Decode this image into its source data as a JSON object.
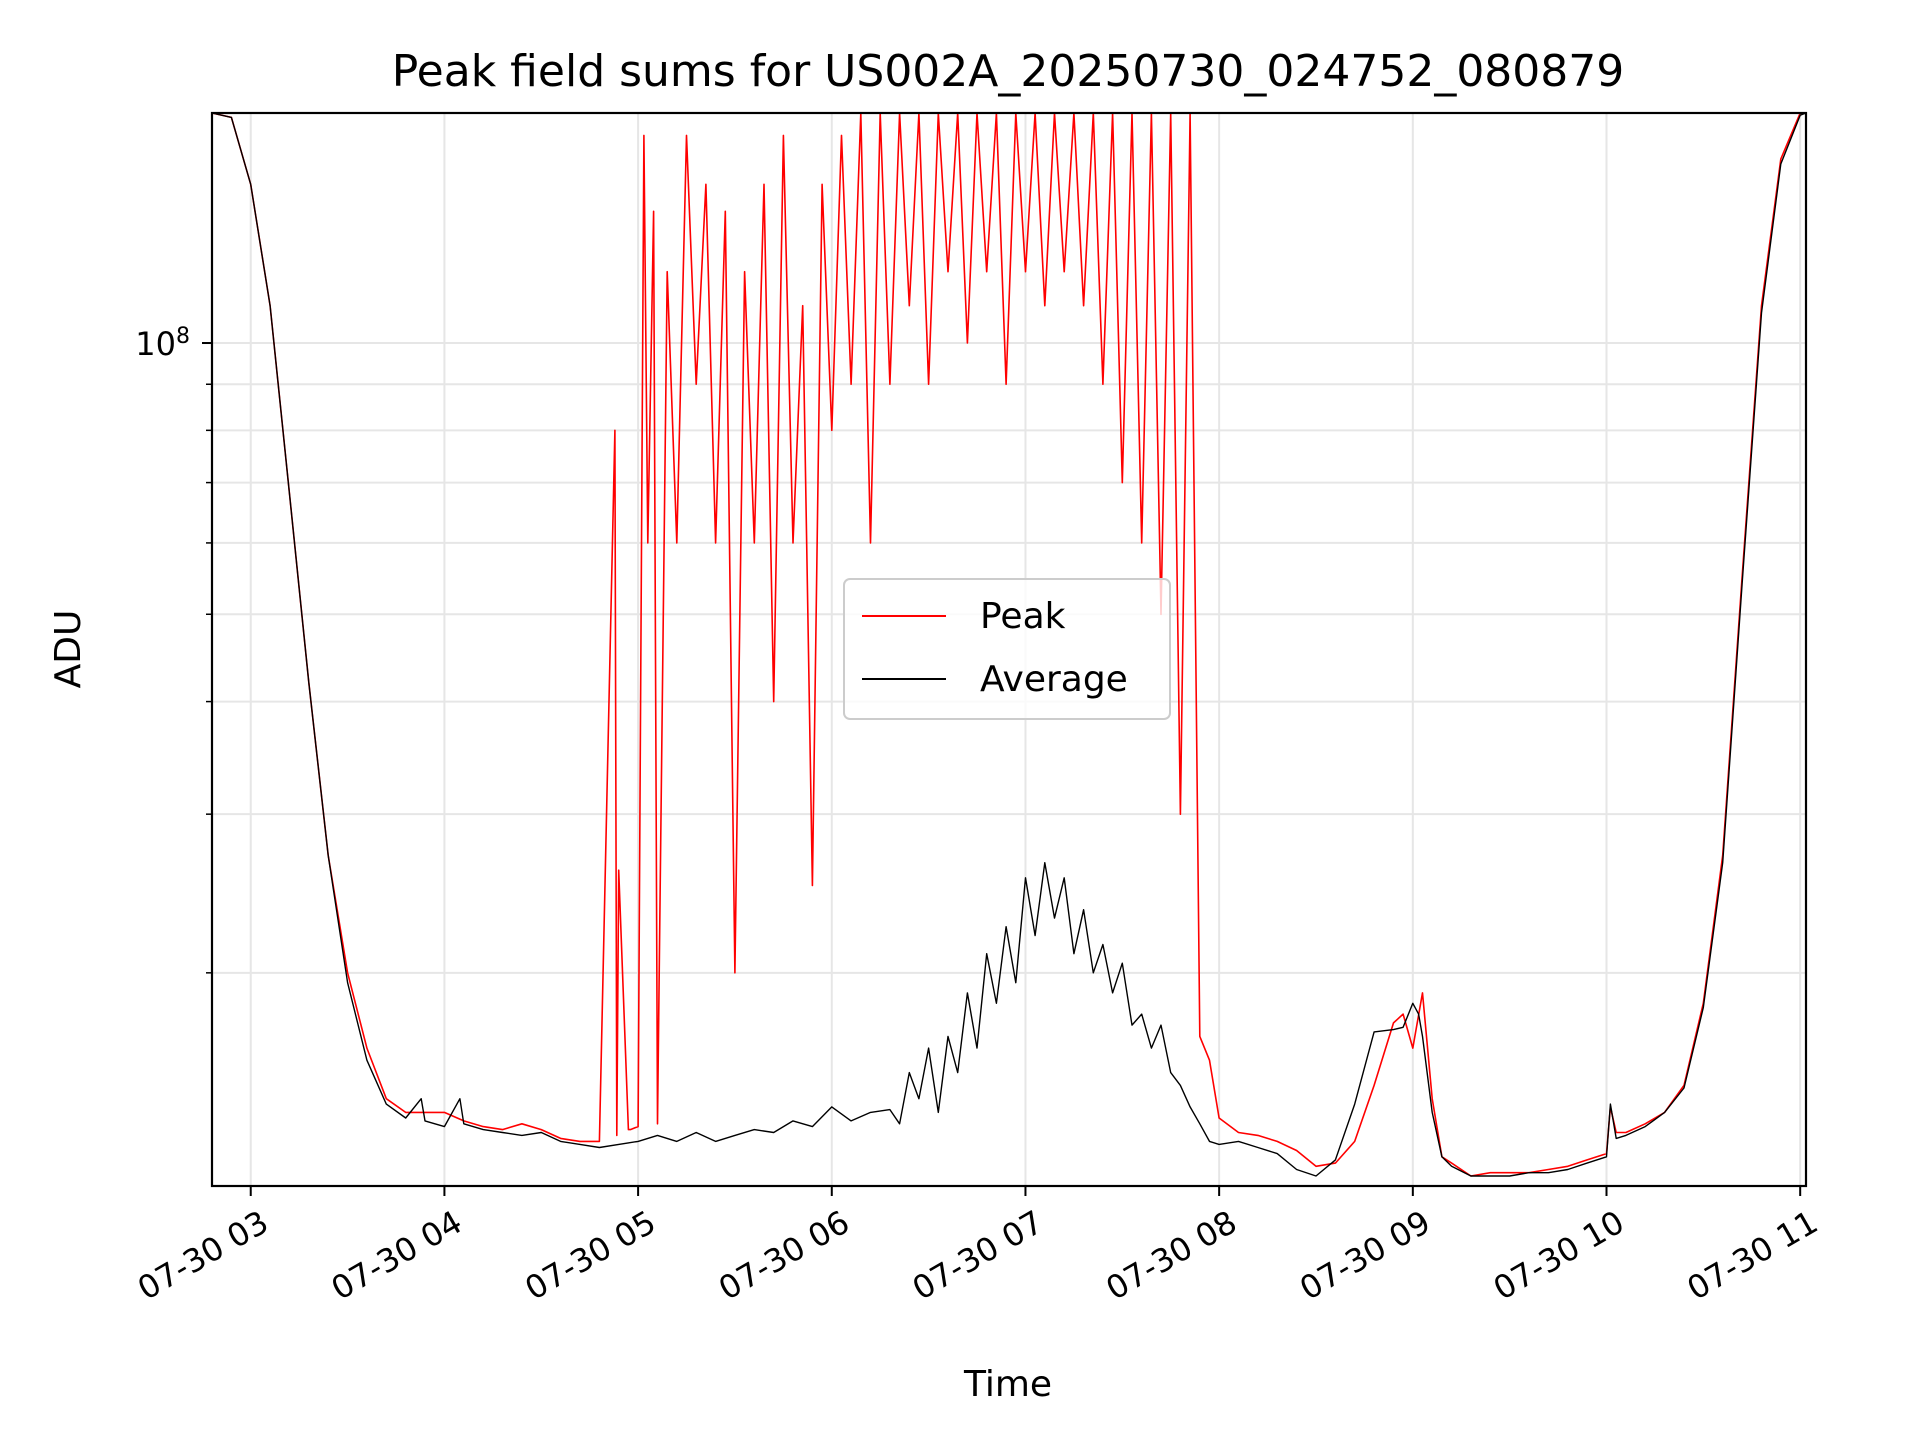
{
  "chart_data": {
    "type": "line",
    "title": "Peak field sums for US002A_20250730_024752_080879",
    "xlabel": "Time",
    "ylabel": "ADU",
    "x_type": "time",
    "x_tick_labels": [
      "07-30 03",
      "07-30 04",
      "07-30 05",
      "07-30 06",
      "07-30 07",
      "07-30 08",
      "07-30 09",
      "07-30 10",
      "07-30 11"
    ],
    "x_tick_hours": [
      3,
      4,
      5,
      6,
      7,
      8,
      9,
      10,
      11
    ],
    "xlim_hours": [
      2.8,
      11.03
    ],
    "y_scale": "log",
    "ylim": [
      11600000,
      180000000
    ],
    "y_major_ticks": [
      {
        "value": 100000000,
        "base": "10",
        "exp": "8"
      }
    ],
    "y_minor_ticks": [
      20000000,
      30000000,
      40000000,
      50000000,
      60000000,
      70000000,
      80000000,
      90000000
    ],
    "grid": true,
    "legend": {
      "placement": "center"
    },
    "series": [
      {
        "name": "Peak",
        "color": "#ff0000",
        "x_hours": [
          2.8,
          2.9,
          3.0,
          3.1,
          3.2,
          3.3,
          3.4,
          3.5,
          3.6,
          3.7,
          3.8,
          3.9,
          4.0,
          4.1,
          4.2,
          4.3,
          4.4,
          4.5,
          4.6,
          4.7,
          4.8,
          4.88,
          4.89,
          4.9,
          4.95,
          4.96,
          5.0,
          5.03,
          5.05,
          5.08,
          5.1,
          5.15,
          5.2,
          5.25,
          5.3,
          5.35,
          5.4,
          5.45,
          5.5,
          5.55,
          5.6,
          5.65,
          5.7,
          5.75,
          5.8,
          5.85,
          5.9,
          5.95,
          6.0,
          6.05,
          6.1,
          6.15,
          6.2,
          6.25,
          6.3,
          6.35,
          6.4,
          6.45,
          6.5,
          6.55,
          6.6,
          6.65,
          6.7,
          6.75,
          6.8,
          6.85,
          6.9,
          6.95,
          7.0,
          7.05,
          7.1,
          7.15,
          7.2,
          7.25,
          7.3,
          7.35,
          7.4,
          7.45,
          7.5,
          7.55,
          7.6,
          7.65,
          7.7,
          7.75,
          7.8,
          7.85,
          7.9,
          7.95,
          8.0,
          8.1,
          8.2,
          8.3,
          8.4,
          8.5,
          8.6,
          8.7,
          8.8,
          8.9,
          8.95,
          9.0,
          9.05,
          9.1,
          9.15,
          9.2,
          9.3,
          9.4,
          9.5,
          9.6,
          9.7,
          9.8,
          9.9,
          10.0,
          10.02,
          10.05,
          10.1,
          10.2,
          10.3,
          10.4,
          10.5,
          10.6,
          10.7,
          10.8,
          10.9,
          11.0,
          11.03
        ],
        "values": [
          180000000,
          178000000,
          150000000,
          110000000,
          68000000,
          42000000,
          27000000,
          20000000,
          16500000,
          14500000,
          14000000,
          14000000,
          14000000,
          13700000,
          13500000,
          13400000,
          13600000,
          13400000,
          13100000,
          13000000,
          13000000,
          80000000,
          13200000,
          26000000,
          13400000,
          13400000,
          13500000,
          170000000,
          60000000,
          140000000,
          13600000,
          120000000,
          60000000,
          170000000,
          90000000,
          150000000,
          60000000,
          140000000,
          20000000,
          120000000,
          60000000,
          150000000,
          40000000,
          170000000,
          60000000,
          110000000,
          25000000,
          150000000,
          80000000,
          170000000,
          90000000,
          180000000,
          60000000,
          180000000,
          90000000,
          180000000,
          110000000,
          180000000,
          90000000,
          180000000,
          120000000,
          180000000,
          100000000,
          180000000,
          120000000,
          180000000,
          90000000,
          180000000,
          120000000,
          180000000,
          110000000,
          180000000,
          120000000,
          180000000,
          110000000,
          180000000,
          90000000,
          180000000,
          70000000,
          180000000,
          60000000,
          180000000,
          50000000,
          180000000,
          30000000,
          180000000,
          17000000,
          16000000,
          13800000,
          13300000,
          13200000,
          13000000,
          12700000,
          12200000,
          12300000,
          13000000,
          15000000,
          17600000,
          18000000,
          16500000,
          19000000,
          14500000,
          12500000,
          12300000,
          11900000,
          12000000,
          12000000,
          12000000,
          12100000,
          12200000,
          12400000,
          12600000,
          14200000,
          13300000,
          13300000,
          13600000,
          14000000,
          15000000,
          18500000,
          27000000,
          55000000,
          110000000,
          160000000,
          180000000,
          180000000
        ]
      },
      {
        "name": "Average",
        "color": "#000000",
        "x_hours": [
          2.8,
          2.9,
          3.0,
          3.1,
          3.2,
          3.3,
          3.4,
          3.5,
          3.6,
          3.7,
          3.8,
          3.88,
          3.9,
          4.0,
          4.08,
          4.1,
          4.2,
          4.3,
          4.4,
          4.5,
          4.6,
          4.7,
          4.8,
          4.9,
          5.0,
          5.1,
          5.2,
          5.3,
          5.4,
          5.5,
          5.6,
          5.7,
          5.8,
          5.9,
          6.0,
          6.1,
          6.2,
          6.3,
          6.35,
          6.4,
          6.45,
          6.5,
          6.55,
          6.6,
          6.65,
          6.7,
          6.75,
          6.8,
          6.85,
          6.9,
          6.95,
          7.0,
          7.05,
          7.1,
          7.15,
          7.2,
          7.25,
          7.3,
          7.35,
          7.4,
          7.45,
          7.5,
          7.55,
          7.6,
          7.65,
          7.7,
          7.75,
          7.8,
          7.85,
          7.9,
          7.95,
          8.0,
          8.1,
          8.2,
          8.3,
          8.4,
          8.5,
          8.6,
          8.7,
          8.8,
          8.9,
          8.95,
          9.0,
          9.03,
          9.05,
          9.1,
          9.15,
          9.2,
          9.3,
          9.4,
          9.5,
          9.6,
          9.7,
          9.8,
          9.9,
          10.0,
          10.02,
          10.05,
          10.1,
          10.2,
          10.3,
          10.4,
          10.5,
          10.6,
          10.7,
          10.8,
          10.9,
          11.0,
          11.03
        ],
        "values": [
          180000000,
          178000000,
          150000000,
          110000000,
          68000000,
          42000000,
          27000000,
          19500000,
          16000000,
          14300000,
          13800000,
          14500000,
          13700000,
          13500000,
          14500000,
          13600000,
          13400000,
          13300000,
          13200000,
          13300000,
          13000000,
          12900000,
          12800000,
          12900000,
          13000000,
          13200000,
          13000000,
          13300000,
          13000000,
          13200000,
          13400000,
          13300000,
          13700000,
          13500000,
          14200000,
          13700000,
          14000000,
          14100000,
          13600000,
          15500000,
          14500000,
          16500000,
          14000000,
          17000000,
          15500000,
          19000000,
          16500000,
          21000000,
          18500000,
          22500000,
          19500000,
          25500000,
          22000000,
          26500000,
          23000000,
          25500000,
          21000000,
          23500000,
          20000000,
          21500000,
          19000000,
          20500000,
          17500000,
          18000000,
          16500000,
          17500000,
          15500000,
          15000000,
          14200000,
          13600000,
          13000000,
          12900000,
          13000000,
          12800000,
          12600000,
          12100000,
          11900000,
          12400000,
          14300000,
          17200000,
          17300000,
          17400000,
          18500000,
          18000000,
          17000000,
          14000000,
          12500000,
          12200000,
          11900000,
          11900000,
          11900000,
          12000000,
          12000000,
          12100000,
          12300000,
          12500000,
          14300000,
          13100000,
          13200000,
          13500000,
          14000000,
          14900000,
          18300000,
          26500000,
          54000000,
          108000000,
          158000000,
          179000000,
          180000000
        ]
      }
    ]
  }
}
